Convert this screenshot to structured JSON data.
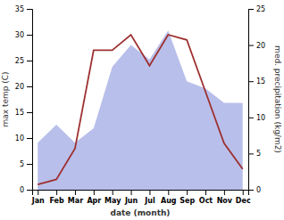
{
  "chart_data": {
    "type": "line",
    "categories": [
      "Jan",
      "Feb",
      "Mar",
      "Apr",
      "May",
      "Jun",
      "Jul",
      "Aug",
      "Sep",
      "Oct",
      "Nov",
      "Dec"
    ],
    "series": [
      {
        "type": "area",
        "axis": "y2",
        "color": "#b0b8e8",
        "values": [
          6.5,
          9,
          6.5,
          8.5,
          17,
          20,
          18,
          22,
          15,
          14,
          12,
          12
        ]
      },
      {
        "type": "line",
        "color": "#9e3030",
        "values": [
          1,
          2,
          8,
          27,
          27,
          30,
          24,
          30,
          29,
          19,
          9,
          4
        ]
      }
    ],
    "xlabel": "date (month)",
    "ylabel": "max temp (C)",
    "y2label": "med. precipitation (kg/m2)",
    "ylim": [
      0,
      35
    ],
    "yticks": [
      0,
      5,
      10,
      15,
      20,
      25,
      30,
      35
    ],
    "y2lim": [
      0,
      25
    ],
    "y2ticks": [
      0,
      5,
      10,
      15,
      20,
      25
    ]
  }
}
